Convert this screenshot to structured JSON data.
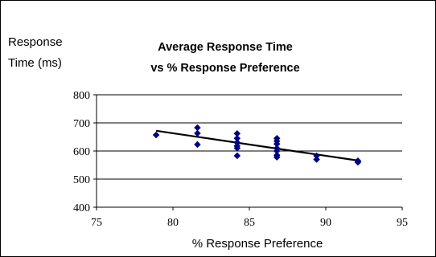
{
  "chart_data": {
    "type": "scatter",
    "title_lines": [
      "Average Response Time",
      "vs % Response Preference"
    ],
    "ylabel_lines": [
      "Response",
      "Time (ms)"
    ],
    "xlabel": "% Response Preference",
    "xlim": [
      75,
      95
    ],
    "ylim": [
      400,
      800
    ],
    "x_ticks": [
      75,
      80,
      85,
      90,
      95
    ],
    "y_ticks": [
      400,
      500,
      600,
      700,
      800
    ],
    "grid": "horizontal",
    "legend": "none",
    "marker_color": "#000080",
    "trendline_color": "#000000",
    "points": [
      {
        "x": 78.9,
        "y": 657
      },
      {
        "x": 81.6,
        "y": 683
      },
      {
        "x": 81.6,
        "y": 663
      },
      {
        "x": 81.6,
        "y": 623
      },
      {
        "x": 84.2,
        "y": 662
      },
      {
        "x": 84.2,
        "y": 645
      },
      {
        "x": 84.2,
        "y": 630
      },
      {
        "x": 84.2,
        "y": 618
      },
      {
        "x": 84.2,
        "y": 610
      },
      {
        "x": 84.2,
        "y": 583
      },
      {
        "x": 86.8,
        "y": 645
      },
      {
        "x": 86.8,
        "y": 635
      },
      {
        "x": 86.8,
        "y": 625
      },
      {
        "x": 86.8,
        "y": 610
      },
      {
        "x": 86.8,
        "y": 600
      },
      {
        "x": 86.8,
        "y": 585
      },
      {
        "x": 86.8,
        "y": 578
      },
      {
        "x": 89.4,
        "y": 583
      },
      {
        "x": 89.4,
        "y": 570
      },
      {
        "x": 92.1,
        "y": 565
      },
      {
        "x": 92.1,
        "y": 560
      }
    ],
    "trendline": {
      "x": [
        78.9,
        92.1
      ],
      "y": [
        672,
        566
      ]
    }
  }
}
